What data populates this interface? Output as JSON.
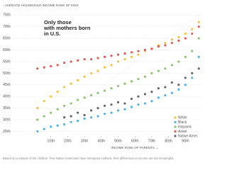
{
  "chart_data": {
    "type": "scatter",
    "y_label": "↑ AVERAGE HOUSEHOLD INCOME RANK OF KIDS",
    "x_label": "INCOME RANK OF PARENTS →",
    "annotation": "Only those with mothers born in U.S.",
    "footnote": "Based on a sample of the children. Few Native Americans have immigrant mothers, their differences in income are not meaningful.",
    "x": [
      2,
      6,
      10,
      14,
      18,
      22,
      26,
      30,
      34,
      38,
      42,
      46,
      50,
      54,
      58,
      62,
      66,
      70,
      74,
      78,
      82,
      86,
      90,
      94,
      98
    ],
    "series": [
      {
        "name": "White",
        "color": "#f2c43a",
        "values": [
          35,
          38,
          40,
          42,
          44,
          45.5,
          47,
          48.5,
          50,
          51,
          52.5,
          53.5,
          55,
          56,
          57,
          58,
          59.5,
          60.5,
          62,
          63,
          64.5,
          65.5,
          67,
          69,
          72
        ]
      },
      {
        "name": "Black",
        "color": "#4fb3e8",
        "values": [
          25,
          26,
          27,
          27.5,
          28,
          29,
          29.5,
          30.5,
          31,
          31.5,
          32.5,
          33,
          34,
          34.5,
          35.5,
          36.5,
          37,
          38,
          39.5,
          40.5,
          41.5,
          43,
          45,
          48,
          57
        ]
      },
      {
        "name": "Hispanic",
        "color": "#8dc26f",
        "values": [
          30,
          31.5,
          33,
          34.5,
          36,
          37,
          38.5,
          39.5,
          40.5,
          41.5,
          42.5,
          43.5,
          44.5,
          45.5,
          46.5,
          47.5,
          48.5,
          50,
          51,
          52,
          53.5,
          55,
          57,
          59.5,
          65
        ]
      },
      {
        "name": "Asian",
        "color": "#e05a5a",
        "values": [
          52,
          52.5,
          53,
          53.5,
          54.5,
          55,
          55.5,
          56,
          56,
          56.5,
          57,
          57.5,
          58,
          58.5,
          59,
          59.5,
          60,
          60.5,
          61.5,
          62,
          63,
          64,
          65,
          67,
          70
        ]
      },
      {
        "name": "Native Amer.",
        "color": "#666666",
        "values": [
          null,
          null,
          null,
          null,
          31,
          31.5,
          33,
          32,
          34,
          35,
          36,
          36.5,
          37.5,
          37,
          39,
          40,
          41,
          42,
          43.5,
          44,
          46,
          45,
          48,
          50,
          52
        ]
      }
    ],
    "xlim": [
      0,
      100
    ],
    "xticks": [
      {
        "value": 10,
        "label": "10th"
      },
      {
        "value": 20,
        "label": "20th"
      },
      {
        "value": 30,
        "label": "30th"
      },
      {
        "value": 40,
        "label": "40th"
      },
      {
        "value": 50,
        "label": "50th"
      },
      {
        "value": 60,
        "label": "60th"
      },
      {
        "value": 70,
        "label": "70th"
      },
      {
        "value": 80,
        "label": "80th"
      },
      {
        "value": 90,
        "label": "90th"
      }
    ],
    "ylim": [
      23,
      76
    ],
    "yticks": [
      {
        "value": 25,
        "label": "25th"
      },
      {
        "value": 30,
        "label": "30th"
      },
      {
        "value": 35,
        "label": "35th"
      },
      {
        "value": 40,
        "label": "40th"
      },
      {
        "value": 45,
        "label": "45th"
      },
      {
        "value": 50,
        "label": "50th"
      },
      {
        "value": 55,
        "label": "55th"
      },
      {
        "value": 60,
        "label": "60th"
      },
      {
        "value": 65,
        "label": "65th"
      },
      {
        "value": 70,
        "label": "70th"
      },
      {
        "value": 75,
        "label": "75th"
      }
    ],
    "grid": true
  }
}
